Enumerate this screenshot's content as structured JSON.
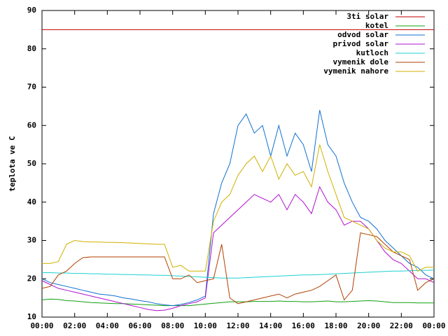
{
  "chart_data": {
    "type": "line",
    "y_label": "teplota ve C",
    "xlim": [
      0,
      24
    ],
    "ylim": [
      10,
      90
    ],
    "xticks": [
      {
        "value": 0,
        "label": "00:00"
      },
      {
        "value": 2,
        "label": "02:00"
      },
      {
        "value": 4,
        "label": "04:00"
      },
      {
        "value": 6,
        "label": "06:00"
      },
      {
        "value": 8,
        "label": "08:00"
      },
      {
        "value": 10,
        "label": "10:00"
      },
      {
        "value": 12,
        "label": "12:00"
      },
      {
        "value": 14,
        "label": "14:00"
      },
      {
        "value": 16,
        "label": "16:00"
      },
      {
        "value": 18,
        "label": "18:00"
      },
      {
        "value": 20,
        "label": "20:00"
      },
      {
        "value": 22,
        "label": "22:00"
      },
      {
        "value": 24,
        "label": "00:00"
      }
    ],
    "yticks": [
      10,
      20,
      30,
      40,
      50,
      60,
      70,
      80,
      90
    ],
    "grid": false,
    "legend": "top-right",
    "x": [
      0,
      0.5,
      1,
      1.5,
      2,
      2.5,
      3,
      3.5,
      4,
      4.5,
      5,
      5.5,
      6,
      6.5,
      7,
      7.5,
      8,
      8.5,
      9,
      9.5,
      10,
      10.5,
      11,
      11.5,
      12,
      12.5,
      13,
      13.5,
      14,
      14.5,
      15,
      15.5,
      16,
      16.5,
      17,
      17.5,
      18,
      18.5,
      19,
      19.5,
      20,
      20.5,
      21,
      21.5,
      22,
      22.5,
      23,
      23.5,
      24
    ],
    "series": [
      {
        "name": "3ti solar",
        "color": "#c00000",
        "values": [
          85,
          85,
          85,
          85,
          85,
          85,
          85,
          85,
          85,
          85,
          85,
          85,
          85,
          85,
          85,
          85,
          85,
          85,
          85,
          85,
          85,
          85,
          85,
          85,
          85,
          85,
          85,
          85,
          85,
          85,
          85,
          85,
          85,
          85,
          85,
          85,
          85,
          85,
          85,
          85,
          85,
          85,
          85,
          85,
          85,
          85,
          85,
          85,
          85
        ]
      },
      {
        "name": "kotel",
        "color": "#10a010",
        "values": [
          14.5,
          14.7,
          14.6,
          14.3,
          14.2,
          14,
          13.8,
          13.7,
          13.6,
          13.5,
          13.5,
          13.4,
          13.3,
          13.2,
          13.1,
          13,
          13,
          13,
          13,
          13.2,
          13.4,
          13.6,
          13.8,
          14,
          14,
          14,
          14.1,
          14.1,
          14.1,
          14.2,
          14.1,
          14.1,
          14,
          14,
          14.1,
          14.2,
          14,
          14,
          14.1,
          14.2,
          14.3,
          14.2,
          14,
          13.8,
          13.8,
          13.8,
          13.7,
          13.7,
          13.7
        ]
      },
      {
        "name": "odvod solar",
        "color": "#1070d0",
        "values": [
          20,
          19,
          18.5,
          18,
          17.5,
          17,
          16.5,
          16,
          15.8,
          15.5,
          15,
          14.7,
          14.3,
          14,
          13.5,
          13.2,
          13,
          13.3,
          13.8,
          14.5,
          15.5,
          37,
          45,
          50,
          60,
          63,
          58,
          60,
          52,
          60,
          52,
          58,
          55,
          48,
          64,
          55,
          52,
          45,
          40,
          36,
          35,
          33,
          30,
          28,
          26,
          24,
          23,
          21,
          20
        ]
      },
      {
        "name": "privod solar",
        "color": "#b010d0",
        "values": [
          19.5,
          18.5,
          17.5,
          17,
          16.5,
          16,
          15.5,
          15,
          14.5,
          14,
          13.5,
          13,
          12.5,
          12,
          11.7,
          11.8,
          12.3,
          13,
          13.5,
          14,
          15,
          32,
          34,
          36,
          38,
          40,
          42,
          41,
          40,
          42,
          38,
          42,
          40,
          37,
          44,
          40,
          38,
          34,
          35,
          35,
          33,
          30,
          27,
          25,
          24,
          22,
          20,
          20,
          19
        ]
      },
      {
        "name": "kutloch",
        "color": "#20d0d0",
        "values": [
          21.6,
          21.6,
          21.5,
          21.5,
          21.4,
          21.4,
          21.3,
          21.3,
          21.2,
          21.2,
          21.1,
          21.1,
          21,
          21,
          20.9,
          20.9,
          20.8,
          20.7,
          20.6,
          20.5,
          20.4,
          20.3,
          20.2,
          20.2,
          20.2,
          20.3,
          20.4,
          20.5,
          20.6,
          20.7,
          20.8,
          20.9,
          21,
          21,
          21.1,
          21.2,
          21.3,
          21.4,
          21.5,
          21.6,
          21.7,
          21.8,
          21.9,
          22,
          22,
          22.1,
          22.2,
          22.2,
          22.3
        ]
      },
      {
        "name": "vymenik dole",
        "color": "#b04000",
        "values": [
          17.5,
          18,
          21,
          22,
          24,
          25.5,
          25.7,
          25.7,
          25.7,
          25.7,
          25.7,
          25.7,
          25.7,
          25.7,
          25.7,
          25.7,
          20,
          20,
          21,
          19,
          19.5,
          20,
          29,
          15,
          13.5,
          14,
          14.5,
          15,
          15.5,
          16,
          15,
          16,
          16.5,
          17,
          18,
          19.5,
          21,
          14.5,
          17,
          32,
          31.5,
          31,
          29,
          27,
          26,
          25,
          17,
          19,
          20
        ]
      },
      {
        "name": "vymenik nahore",
        "color": "#d0b000",
        "values": [
          24,
          24,
          24.5,
          29,
          30,
          29.7,
          29.6,
          29.6,
          29.5,
          29.5,
          29.4,
          29.3,
          29.2,
          29.1,
          29,
          29,
          23,
          23.5,
          22,
          22,
          22,
          35,
          40,
          42,
          47,
          50,
          52,
          48,
          52,
          46,
          50,
          47,
          48,
          44,
          55,
          48,
          42,
          36,
          35,
          34,
          33,
          30,
          28,
          27,
          27,
          26,
          22,
          23,
          23
        ]
      }
    ]
  }
}
